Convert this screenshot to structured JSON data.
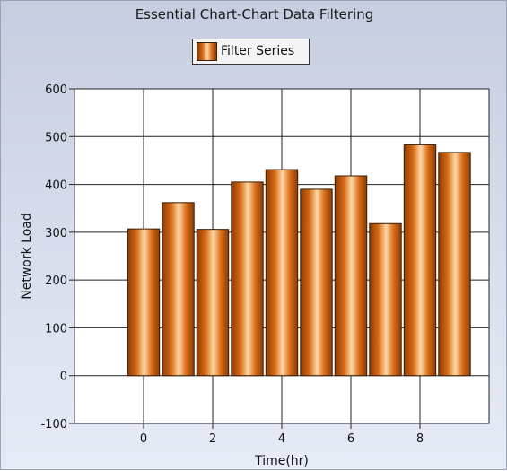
{
  "chart_data": {
    "type": "bar",
    "title": "Essential Chart-Chart Data Filtering",
    "xlabel": "Time(hr)",
    "ylabel": "Network Load",
    "legend": {
      "entries": [
        "Filter Series"
      ],
      "position": "top-center"
    },
    "series": [
      {
        "name": "Filter Series",
        "x": [
          0,
          1,
          2,
          3,
          4,
          5,
          6,
          7,
          8,
          9
        ],
        "values": [
          307,
          362,
          306,
          405,
          431,
          390,
          418,
          318,
          483,
          467
        ]
      }
    ],
    "xlim": [
      -2,
      10
    ],
    "ylim": [
      -100,
      600
    ],
    "xticks": [
      0,
      2,
      4,
      6,
      8
    ],
    "yticks": [
      -100,
      0,
      100,
      200,
      300,
      400,
      500,
      600
    ],
    "grid": true,
    "colors": {
      "bar": "#d86a14",
      "bar_dark": "#8a3c08",
      "bar_light": "#ffd7a6",
      "plot_bg": "#ffffff"
    }
  }
}
